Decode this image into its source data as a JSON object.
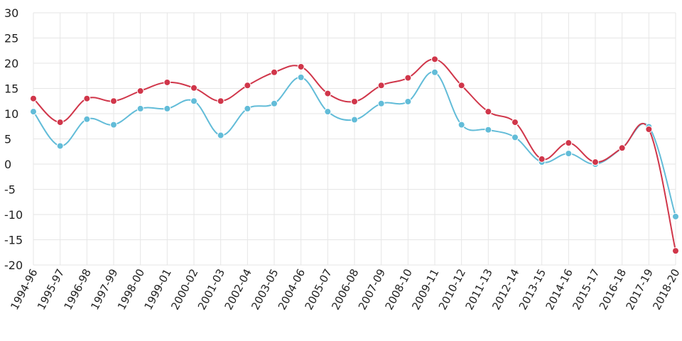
{
  "chart_data": {
    "type": "line",
    "title": "",
    "xlabel": "",
    "ylabel": "",
    "ylim": [
      -20,
      30
    ],
    "yticks": [
      30,
      25,
      20,
      15,
      10,
      5,
      0,
      -5,
      -10,
      -15,
      -20
    ],
    "grid": true,
    "legend": "none",
    "categories": [
      "1994-96",
      "1995-97",
      "1996-98",
      "1997-99",
      "1998-00",
      "1999-01",
      "2000-02",
      "2001-03",
      "2002-04",
      "2003-05",
      "2004-06",
      "2005-07",
      "2006-08",
      "2007-09",
      "2008-10",
      "2009-11",
      "2010-12",
      "2011-13",
      "2012-14",
      "2013-15",
      "2014-16",
      "2015-17",
      "2016-18",
      "2017-19",
      "2018-20"
    ],
    "series": [
      {
        "color": "#d0364a",
        "values": [
          13.0,
          8.3,
          13.0,
          12.5,
          14.5,
          16.2,
          15.1,
          12.5,
          15.6,
          18.2,
          19.3,
          14.0,
          12.4,
          15.6,
          17.1,
          20.8,
          15.6,
          10.4,
          8.3,
          1.0,
          4.2,
          0.4,
          3.2,
          6.9,
          -17.2
        ]
      },
      {
        "color": "#62bcd8",
        "values": [
          10.4,
          3.6,
          8.9,
          7.8,
          11.0,
          11.0,
          12.5,
          5.7,
          11.0,
          12.0,
          17.2,
          10.4,
          8.8,
          12.0,
          12.4,
          18.2,
          7.8,
          6.8,
          5.3,
          0.4,
          2.1,
          0.0,
          3.2,
          7.4,
          -10.4
        ]
      }
    ]
  }
}
